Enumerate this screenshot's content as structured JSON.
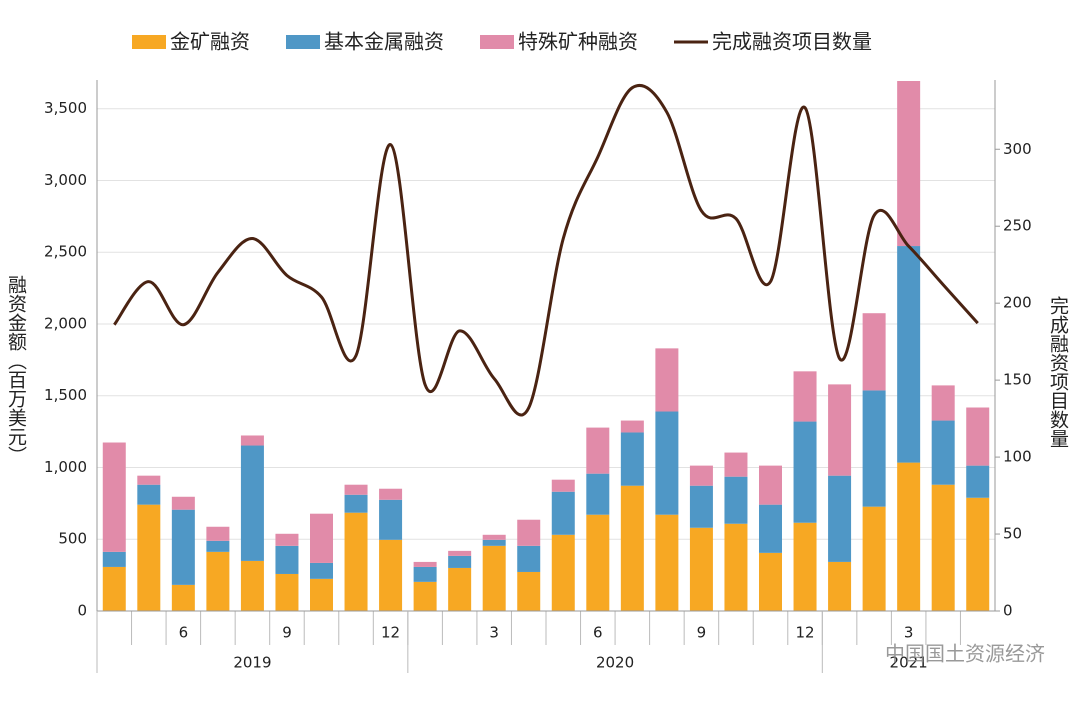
{
  "chart_data": {
    "type": "stacked-bar-line",
    "categories": [
      null,
      null,
      "6",
      null,
      null,
      "9",
      null,
      null,
      "12",
      null,
      null,
      "3",
      null,
      null,
      "6",
      null,
      null,
      "9",
      null,
      null,
      "12",
      null,
      null,
      "3",
      null,
      null
    ],
    "groups": [
      {
        "label": "2019",
        "start": 0,
        "end": 8
      },
      {
        "label": "2020",
        "start": 9,
        "end": 20
      },
      {
        "label": "2021",
        "start": 21,
        "end": 25
      }
    ],
    "series": [
      {
        "name": "金矿融资",
        "color": "#f7a823",
        "values": [
          307,
          741,
          182,
          412,
          349,
          258,
          224,
          685,
          496,
          203,
          300,
          454,
          272,
          531,
          671,
          873,
          671,
          580,
          608,
          405,
          615,
          342,
          727,
          1034,
          880,
          789
        ]
      },
      {
        "name": "基本金属融资",
        "color": "#4f97c6",
        "values": [
          105,
          139,
          524,
          77,
          804,
          196,
          111,
          125,
          279,
          104,
          84,
          42,
          182,
          300,
          286,
          371,
          719,
          293,
          328,
          336,
          705,
          601,
          810,
          1509,
          447,
          224
        ]
      },
      {
        "name": "特殊矿种融资",
        "color": "#e18ba9",
        "values": [
          762,
          63,
          90,
          98,
          70,
          84,
          343,
          70,
          77,
          35,
          35,
          35,
          182,
          84,
          321,
          83,
          440,
          140,
          168,
          272,
          350,
          636,
          538,
          1150,
          245,
          405
        ]
      },
      {
        "name": "完成融资项目数量",
        "color": "#4a2312",
        "axis": "y2",
        "type": "line",
        "values": [
          186,
          214,
          186,
          220,
          242,
          218,
          204,
          166,
          303,
          147,
          182,
          151,
          132,
          242,
          295,
          340,
          324,
          260,
          255,
          214,
          327,
          164,
          257,
          237,
          212,
          187
        ]
      }
    ],
    "ylabel": "融资金额（百万美元）",
    "y2label": "完成融资项目数量",
    "ylim": [
      0,
      3700
    ],
    "yticks": [
      0,
      500,
      {
        "value": 1000,
        "label": "1,000"
      },
      {
        "value": 1500,
        "label": "1,500"
      },
      {
        "value": 2000,
        "label": "2,000"
      },
      {
        "value": 2500,
        "label": "2,500"
      },
      {
        "value": 3000,
        "label": "3,000"
      },
      {
        "value": 3500,
        "label": "3,500"
      }
    ],
    "y2lim": [
      0,
      345
    ],
    "y2ticks": [
      0,
      50,
      100,
      150,
      200,
      250,
      300
    ],
    "watermark": "中国国土资源经济"
  }
}
